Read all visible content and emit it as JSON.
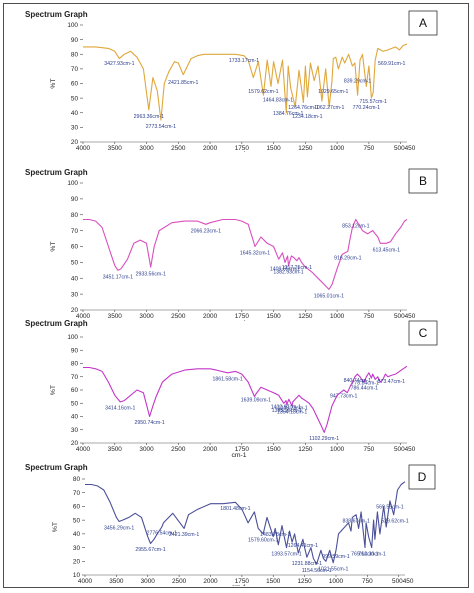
{
  "chart_data": [
    {
      "type": "line",
      "panel_label": "A",
      "title": "Spectrum Graph",
      "xlabel": "cm-1",
      "ylabel": "%T",
      "color": "#e0a73a",
      "xlim": [
        4000,
        450
      ],
      "ylim": [
        20,
        100
      ],
      "x_ticks": [
        "4000",
        "3500",
        "3000",
        "2500",
        "2000",
        "1750",
        "1500",
        "1250",
        "1000",
        "750",
        "500450"
      ],
      "y_ticks": [
        "100",
        "90",
        "80",
        "70",
        "60",
        "50",
        "40",
        "30",
        "20"
      ],
      "x": [
        4000,
        3800,
        3600,
        3500,
        3428,
        3350,
        3250,
        3150,
        3050,
        2964,
        2900,
        2830,
        2774,
        2720,
        2650,
        2560,
        2500,
        2422,
        2300,
        2200,
        2100,
        2000,
        1900,
        1800,
        1733,
        1700,
        1660,
        1620,
        1580,
        1550,
        1520,
        1500,
        1465,
        1430,
        1400,
        1385,
        1365,
        1330,
        1300,
        1265,
        1250,
        1234,
        1210,
        1180,
        1150,
        1120,
        1090,
        1062,
        1040,
        1030,
        1010,
        990,
        960,
        940,
        910,
        880,
        860,
        839,
        820,
        800,
        770,
        750,
        730,
        716,
        700,
        680,
        640,
        600,
        570,
        540,
        510,
        480,
        450
      ],
      "values": [
        85,
        85,
        84,
        82,
        77,
        80,
        82,
        78,
        70,
        42,
        64,
        55,
        35,
        60,
        68,
        75,
        74,
        66,
        77,
        79,
        80,
        80,
        80,
        80,
        79,
        76,
        64,
        75,
        52,
        76,
        58,
        75,
        60,
        76,
        40,
        72,
        57,
        44,
        69,
        47,
        72,
        51,
        74,
        62,
        72,
        48,
        70,
        44,
        62,
        77,
        78,
        70,
        78,
        74,
        80,
        72,
        74,
        52,
        76,
        80,
        58,
        72,
        50,
        54,
        76,
        84,
        82,
        83,
        84,
        85,
        83,
        86,
        87
      ],
      "annotations": [
        {
          "text": "3427.93cm-1",
          "x": 3428,
          "y": 76
        },
        {
          "text": "2963.36cm-1",
          "x": 2964,
          "y": 40
        },
        {
          "text": "2773.54cm-1",
          "x": 2774,
          "y": 33
        },
        {
          "text": "2421.85cm-1",
          "x": 2422,
          "y": 63
        },
        {
          "text": "1733.17cm-1",
          "x": 1733,
          "y": 78
        },
        {
          "text": "1579.62cm-1",
          "x": 1580,
          "y": 57
        },
        {
          "text": "1464.83cm-1",
          "x": 1465,
          "y": 51
        },
        {
          "text": "1384.76cm-1",
          "x": 1385,
          "y": 42
        },
        {
          "text": "1264.76cm-1",
          "x": 1265,
          "y": 46
        },
        {
          "text": "1234.18cm-1",
          "x": 1234,
          "y": 40
        },
        {
          "text": "1062.27cm-1",
          "x": 1062,
          "y": 46
        },
        {
          "text": "1029.65cm-1",
          "x": 1030,
          "y": 57
        },
        {
          "text": "839.29cm-1",
          "x": 839,
          "y": 64
        },
        {
          "text": "770.24cm-1",
          "x": 770,
          "y": 46
        },
        {
          "text": "715.57cm-1",
          "x": 716,
          "y": 50
        },
        {
          "text": "569.91cm-1",
          "x": 570,
          "y": 76
        }
      ]
    },
    {
      "type": "line",
      "panel_label": "B",
      "title": "Spectrum Graph",
      "xlabel": "cm-1",
      "ylabel": "%T",
      "color": "#d94fbf",
      "xlim": [
        4000,
        450
      ],
      "ylim": [
        20,
        100
      ],
      "x_ticks": [
        "4000",
        "3500",
        "3000",
        "2500",
        "2000",
        "1750",
        "1500",
        "1250",
        "1000",
        "750",
        "500450"
      ],
      "y_ticks": [
        "100",
        "90",
        "80",
        "70",
        "60",
        "50",
        "40",
        "30",
        "20"
      ],
      "x": [
        4000,
        3900,
        3800,
        3700,
        3600,
        3500,
        3451,
        3400,
        3300,
        3200,
        3100,
        3000,
        2934,
        2880,
        2800,
        2600,
        2400,
        2200,
        2066,
        2000,
        1900,
        1800,
        1750,
        1700,
        1646,
        1600,
        1550,
        1500,
        1460,
        1430,
        1410,
        1390,
        1383,
        1360,
        1340,
        1317,
        1300,
        1280,
        1250,
        1200,
        1150,
        1100,
        1065,
        1040,
        1000,
        960,
        916,
        900,
        880,
        853,
        830,
        800,
        760,
        720,
        700,
        680,
        660,
        613,
        580,
        540,
        500,
        470,
        450
      ],
      "values": [
        77,
        77,
        76,
        72,
        60,
        48,
        45,
        46,
        52,
        62,
        64,
        62,
        47,
        60,
        70,
        75,
        76,
        76,
        74,
        75,
        77,
        77,
        76,
        74,
        60,
        66,
        62,
        60,
        52,
        56,
        50,
        54,
        48,
        54,
        53,
        51,
        53,
        50,
        47,
        44,
        40,
        36,
        33,
        36,
        46,
        55,
        57,
        64,
        72,
        77,
        74,
        70,
        68,
        70,
        68,
        66,
        62,
        62,
        63,
        68,
        72,
        76,
        77
      ],
      "annotations": [
        {
          "text": "3451.17cm-1",
          "x": 3451,
          "y": 43
        },
        {
          "text": "2933.56cm-1",
          "x": 2934,
          "y": 45
        },
        {
          "text": "2066.23cm-1",
          "x": 2066,
          "y": 72
        },
        {
          "text": "1645.32cm-1",
          "x": 1646,
          "y": 58
        },
        {
          "text": "1409.65cm-1",
          "x": 1410,
          "y": 48
        },
        {
          "text": "1382.93cm-1",
          "x": 1383,
          "y": 46
        },
        {
          "text": "1317.25cm-1",
          "x": 1317,
          "y": 49
        },
        {
          "text": "1065.01cm-1",
          "x": 1065,
          "y": 31
        },
        {
          "text": "916.29cm-1",
          "x": 916,
          "y": 55
        },
        {
          "text": "853.12cm-1",
          "x": 853,
          "y": 75
        },
        {
          "text": "613.45cm-1",
          "x": 613,
          "y": 60
        }
      ]
    },
    {
      "type": "line",
      "panel_label": "C",
      "title": "Spectrum Graph",
      "xlabel": "cm-1",
      "ylabel": "%T",
      "color": "#c436c9",
      "xlim": [
        4000,
        450
      ],
      "ylim": [
        20,
        100
      ],
      "x_ticks": [
        "4000",
        "3500",
        "3000",
        "2500",
        "2000",
        "1750",
        "1500",
        "1250",
        "1000",
        "750",
        "500450"
      ],
      "y_ticks": [
        "100",
        "90",
        "80",
        "70",
        "60",
        "50",
        "40",
        "30",
        "20"
      ],
      "x": [
        4000,
        3900,
        3800,
        3700,
        3600,
        3500,
        3414,
        3350,
        3250,
        3150,
        3050,
        2951,
        2900,
        2850,
        2750,
        2600,
        2400,
        2200,
        2000,
        1950,
        1862,
        1800,
        1750,
        1700,
        1650,
        1639,
        1600,
        1550,
        1500,
        1460,
        1420,
        1402,
        1396,
        1380,
        1355,
        1349,
        1330,
        1300,
        1280,
        1250,
        1220,
        1190,
        1160,
        1120,
        1102,
        1080,
        1040,
        1000,
        948,
        920,
        900,
        880,
        860,
        840,
        820,
        800,
        786,
        770,
        750,
        730,
        720,
        700,
        680,
        660,
        640,
        620,
        600,
        574,
        540,
        510,
        480,
        450
      ],
      "values": [
        77,
        77,
        76,
        74,
        66,
        56,
        51,
        52,
        56,
        60,
        58,
        40,
        48,
        55,
        66,
        72,
        75,
        76,
        76,
        75,
        73,
        74,
        72,
        66,
        55,
        57,
        62,
        60,
        58,
        56,
        50,
        52,
        49,
        53,
        48,
        51,
        53,
        56,
        54,
        52,
        50,
        46,
        40,
        32,
        28,
        34,
        48,
        56,
        60,
        58,
        62,
        66,
        70,
        72,
        70,
        67,
        66,
        70,
        73,
        69,
        72,
        68,
        70,
        66,
        68,
        72,
        70,
        71,
        72,
        74,
        76,
        78
      ],
      "annotations": [
        {
          "text": "3414.16cm-1",
          "x": 3414,
          "y": 49
        },
        {
          "text": "2950.74cm-1",
          "x": 2951,
          "y": 38
        },
        {
          "text": "1861.58cm-1",
          "x": 1862,
          "y": 71
        },
        {
          "text": "1639.09cm-1",
          "x": 1639,
          "y": 55
        },
        {
          "text": "1402.97cm-1",
          "x": 1403,
          "y": 50
        },
        {
          "text": "1395.96cm-1",
          "x": 1396,
          "y": 47
        },
        {
          "text": "1354.13cm-1",
          "x": 1354,
          "y": 46
        },
        {
          "text": "1349.78cm-1",
          "x": 1350,
          "y": 49
        },
        {
          "text": "1102.29cm-1",
          "x": 1102,
          "y": 26
        },
        {
          "text": "947.73cm-1",
          "x": 948,
          "y": 58
        },
        {
          "text": "840.74cm-1",
          "x": 841,
          "y": 70
        },
        {
          "text": "786.44cm-1",
          "x": 786,
          "y": 64
        },
        {
          "text": "778.84cm-1",
          "x": 779,
          "y": 68
        },
        {
          "text": "573.47cm-1",
          "x": 573,
          "y": 69
        }
      ]
    },
    {
      "type": "line",
      "panel_label": "D",
      "title": "Spectrum Graph",
      "xlabel": "cm-1",
      "ylabel": "%T",
      "color": "#4a4f99",
      "xlim": [
        4000,
        450
      ],
      "ylim": [
        10,
        80
      ],
      "x_ticks": [
        "4000",
        "3500",
        "3000",
        "2500",
        "2000",
        "1750",
        "1500",
        "1250",
        "1000",
        "750",
        "500450"
      ],
      "y_ticks": [
        "80",
        "70",
        "60",
        "50",
        "40",
        "30",
        "20",
        "10"
      ],
      "x": [
        4000,
        3900,
        3800,
        3700,
        3600,
        3500,
        3456,
        3400,
        3300,
        3200,
        3100,
        3000,
        2956,
        2900,
        2850,
        2776,
        2750,
        2600,
        2421,
        2350,
        2200,
        2000,
        1900,
        1802,
        1750,
        1700,
        1650,
        1620,
        1580,
        1550,
        1500,
        1484,
        1460,
        1430,
        1394,
        1370,
        1350,
        1330,
        1300,
        1264,
        1250,
        1232,
        1200,
        1180,
        1154,
        1120,
        1100,
        1080,
        1050,
        1022,
        1000,
        980,
        940,
        900,
        880,
        870,
        840,
        820,
        800,
        769,
        760,
        740,
        715,
        700,
        690,
        670,
        650,
        620,
        600,
        570,
        540,
        510,
        480,
        450
      ],
      "values": [
        76,
        76,
        75,
        72,
        63,
        52,
        49,
        50,
        52,
        55,
        52,
        38,
        33,
        36,
        40,
        45,
        48,
        55,
        44,
        54,
        58,
        62,
        62,
        63,
        58,
        48,
        56,
        44,
        40,
        52,
        38,
        44,
        32,
        46,
        30,
        42,
        34,
        40,
        26,
        36,
        30,
        23,
        30,
        22,
        18,
        28,
        22,
        20,
        28,
        19,
        28,
        40,
        44,
        48,
        42,
        52,
        54,
        44,
        56,
        30,
        48,
        38,
        30,
        50,
        36,
        56,
        40,
        60,
        45,
        64,
        54,
        72,
        76,
        78
      ],
      "annotations": [
        {
          "text": "3456.29cm-1",
          "x": 3456,
          "y": 47
        },
        {
          "text": "2955.67cm-1",
          "x": 2956,
          "y": 31
        },
        {
          "text": "2776.54cm-1",
          "x": 2776,
          "y": 43
        },
        {
          "text": "2421.39cm-1",
          "x": 2421,
          "y": 42
        },
        {
          "text": "1801.48cm-1",
          "x": 1802,
          "y": 61
        },
        {
          "text": "1579.60cm-1",
          "x": 1580,
          "y": 38
        },
        {
          "text": "1483.78cm-1",
          "x": 1484,
          "y": 42
        },
        {
          "text": "1393.57cm-1",
          "x": 1394,
          "y": 28
        },
        {
          "text": "1264.41cm-1",
          "x": 1264,
          "y": 34
        },
        {
          "text": "1231.88cm-1",
          "x": 1232,
          "y": 21
        },
        {
          "text": "1154.56cm-1",
          "x": 1154,
          "y": 16
        },
        {
          "text": "1021.55cm-1",
          "x": 1022,
          "y": 17
        },
        {
          "text": "999.59cm-1",
          "x": 1000,
          "y": 26
        },
        {
          "text": "838.67cm-1",
          "x": 839,
          "y": 52
        },
        {
          "text": "769.64cm-1",
          "x": 770,
          "y": 28
        },
        {
          "text": "712.30cm-1",
          "x": 712,
          "y": 28
        },
        {
          "text": "529.62cm-1",
          "x": 530,
          "y": 52
        },
        {
          "text": "569.55cm-1",
          "x": 570,
          "y": 62
        }
      ]
    }
  ]
}
